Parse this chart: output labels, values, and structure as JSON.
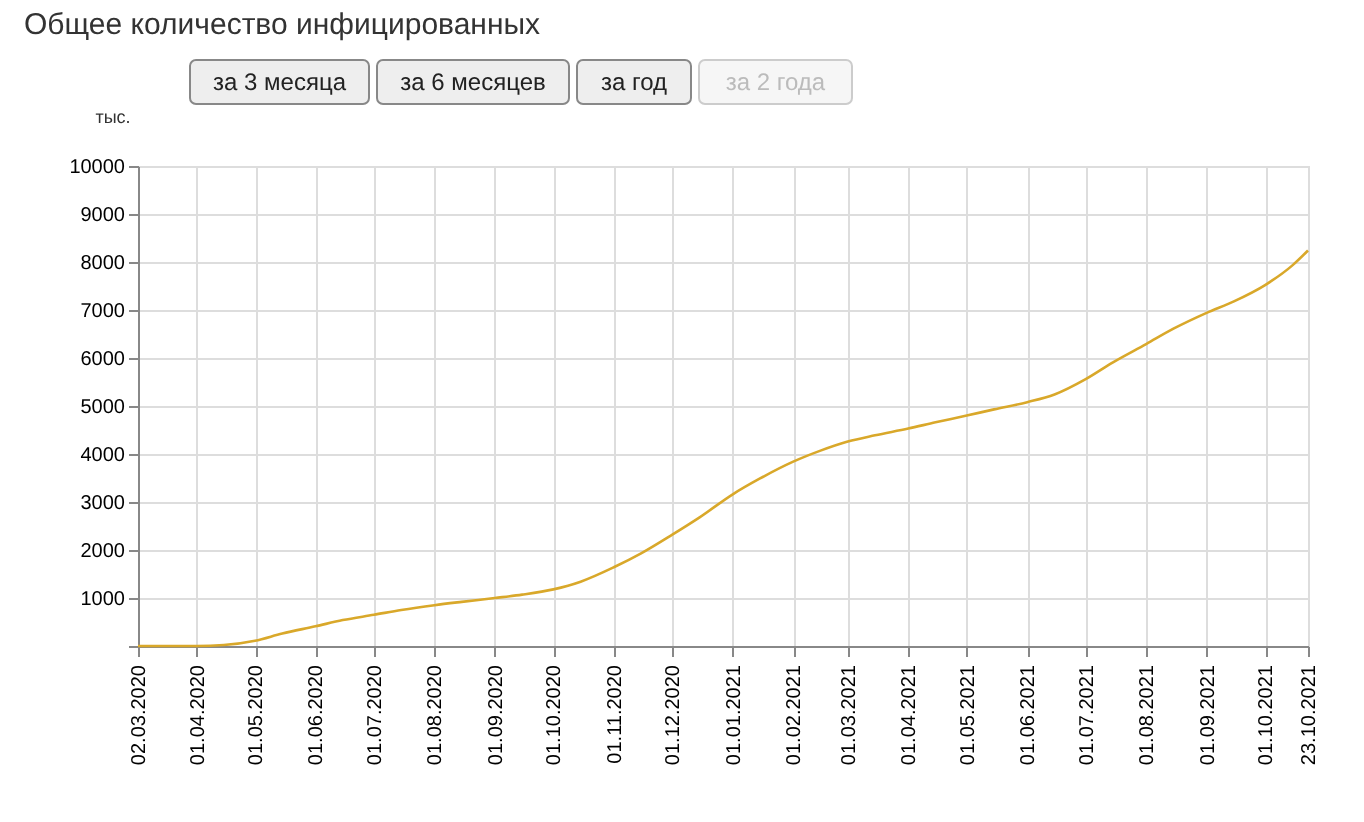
{
  "chart_data": {
    "type": "line",
    "title": "Общее количество инфицированных",
    "ylabel": "тыс.",
    "annotations": [
      "за 3 месяца",
      "за 6 месяцев",
      "за год",
      "за 2 года"
    ],
    "x": [
      "2020-03-02",
      "2020-03-15",
      "2020-04-01",
      "2020-04-15",
      "2020-05-01",
      "2020-05-15",
      "2020-06-01",
      "2020-06-15",
      "2020-07-01",
      "2020-07-15",
      "2020-08-01",
      "2020-08-15",
      "2020-09-01",
      "2020-09-15",
      "2020-10-01",
      "2020-10-15",
      "2020-11-01",
      "2020-11-15",
      "2020-12-01",
      "2020-12-15",
      "2021-01-01",
      "2021-01-15",
      "2021-02-01",
      "2021-02-15",
      "2021-03-01",
      "2021-03-15",
      "2021-04-01",
      "2021-04-15",
      "2021-05-01",
      "2021-05-15",
      "2021-06-01",
      "2021-06-15",
      "2021-07-01",
      "2021-07-15",
      "2021-08-01",
      "2021-08-15",
      "2021-09-01",
      "2021-09-15",
      "2021-10-01",
      "2021-10-15",
      "2021-10-23"
    ],
    "series": [
      {
        "color": "#d9a82a",
        "values": [
          0,
          0,
          0,
          20,
          110,
          260,
          410,
          540,
          650,
          750,
          850,
          920,
          1000,
          1070,
          1180,
          1340,
          1640,
          1930,
          2320,
          2680,
          3160,
          3490,
          3840,
          4070,
          4260,
          4390,
          4530,
          4660,
          4800,
          4930,
          5080,
          5240,
          5560,
          5910,
          6290,
          6610,
          6940,
          7180,
          7520,
          7930,
          8240
        ]
      }
    ],
    "xlim": [
      "2020-03-02",
      "2021-10-23"
    ],
    "xticks": [
      {
        "value": "2020-03-02",
        "label": "02.03.2020"
      },
      {
        "value": "2020-04-01",
        "label": "01.04.2020"
      },
      {
        "value": "2020-05-01",
        "label": "01.05.2020"
      },
      {
        "value": "2020-06-01",
        "label": "01.06.2020"
      },
      {
        "value": "2020-07-01",
        "label": "01.07.2020"
      },
      {
        "value": "2020-08-01",
        "label": "01.08.2020"
      },
      {
        "value": "2020-09-01",
        "label": "01.09.2020"
      },
      {
        "value": "2020-10-01",
        "label": "01.10.2020"
      },
      {
        "value": "2020-11-01",
        "label": "01.11.2020"
      },
      {
        "value": "2020-12-01",
        "label": "01.12.2020"
      },
      {
        "value": "2021-01-01",
        "label": "01.01.2021"
      },
      {
        "value": "2021-02-01",
        "label": "01.02.2021"
      },
      {
        "value": "2021-03-01",
        "label": "01.03.2021"
      },
      {
        "value": "2021-04-01",
        "label": "01.04.2021"
      },
      {
        "value": "2021-05-01",
        "label": "01.05.2021"
      },
      {
        "value": "2021-06-01",
        "label": "01.06.2021"
      },
      {
        "value": "2021-07-01",
        "label": "01.07.2021"
      },
      {
        "value": "2021-08-01",
        "label": "01.08.2021"
      },
      {
        "value": "2021-09-01",
        "label": "01.09.2021"
      },
      {
        "value": "2021-10-01",
        "label": "01.10.2021"
      },
      {
        "value": "2021-10-23",
        "label": "23.10.2021"
      }
    ],
    "ylim": [
      0,
      10000
    ],
    "yticks": [
      {
        "value": 0,
        "label": null
      },
      1000,
      2000,
      3000,
      4000,
      5000,
      6000,
      7000,
      8000,
      9000,
      10000
    ],
    "grid": true,
    "marker": "none",
    "line_style": "solid"
  }
}
